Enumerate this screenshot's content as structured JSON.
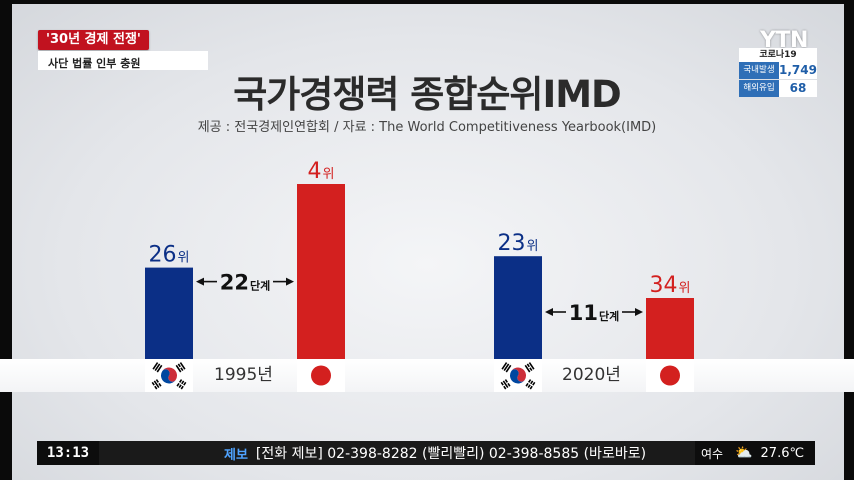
{
  "news": {
    "caption_red": "'30년 경제 전쟁'",
    "caption_white": "사단 법률 인부 충원"
  },
  "broadcaster": {
    "logo": "YTN",
    "covid": {
      "title": "코로나19",
      "rows": [
        {
          "label": "국내발생",
          "value": "1,749"
        },
        {
          "label": "해외유입",
          "value": "68"
        }
      ]
    }
  },
  "chart_data": {
    "type": "bar",
    "title": "국가경쟁력 종합순위IMD",
    "subtitle": "제공 : 전국경제인연합회 / 자료 : The World Competitiveness Yearbook(IMD)",
    "rank_suffix": "위",
    "gap_suffix": "단계",
    "groups": [
      {
        "year": "1995년",
        "bars": [
          {
            "country": "korea",
            "rank": 26,
            "color": "#0b2f86"
          },
          {
            "country": "japan",
            "rank": 4,
            "color": "#d3201f"
          }
        ],
        "gap": 22
      },
      {
        "year": "2020년",
        "bars": [
          {
            "country": "korea",
            "rank": 23,
            "color": "#0b2f86"
          },
          {
            "country": "japan",
            "rank": 34,
            "color": "#d3201f"
          }
        ],
        "gap": 11
      }
    ]
  },
  "ticker": {
    "clock": "13:13",
    "tag": "제보",
    "text": "[전화 제보]  02-398-8282 (빨리빨리)   02-398-8585 (바로바로)",
    "weather_city": "여수",
    "weather_icon": "partly-cloudy-icon",
    "temperature": "27.6℃"
  }
}
